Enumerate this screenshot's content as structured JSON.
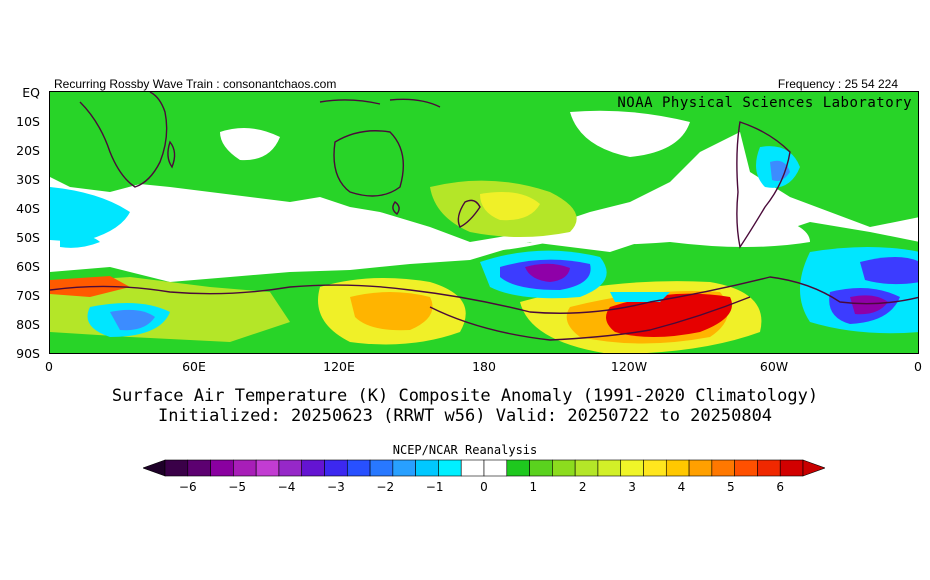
{
  "header": {
    "left": "Recurring Rossby Wave Train : consonantchaos.com",
    "right": "Frequency : 25 54 224"
  },
  "map": {
    "lab_label": "NOAA Physical Sciences Laboratory",
    "projection": "equirectangular, 0–360E, EQ–90S",
    "lat_labels": [
      "EQ",
      "10S",
      "20S",
      "30S",
      "40S",
      "50S",
      "60S",
      "70S",
      "80S",
      "90S"
    ],
    "lon_labels": [
      "0",
      "60E",
      "120E",
      "180",
      "120W",
      "60W",
      "0"
    ],
    "fill_palette": {
      "neg6": "#5a006a",
      "neg5": "#8f00a8",
      "neg4": "#c03ad8",
      "neg3": "#3c3cff",
      "neg2": "#3c8cff",
      "neg1": "#00e6ff",
      "neutral": "#ffffff",
      "pos1": "#28d428",
      "pos2": "#b4e628",
      "pos3": "#f0f028",
      "pos4": "#ffb400",
      "pos5": "#ff5a00",
      "pos6": "#e60000"
    },
    "coastline_color": "#4a0a3a"
  },
  "title": {
    "line1": "Surface Air Temperature (K) Composite Anomaly (1991-2020 Climatology)",
    "line2": "Initialized: 20250623 (RRWT w56) Valid: 20250722 to 20250804"
  },
  "colorbar": {
    "source": "NCEP/NCAR Reanalysis",
    "colors": [
      "#3a0048",
      "#5c0070",
      "#8a00a0",
      "#a81eb8",
      "#c23cd2",
      "#9628c8",
      "#6414d2",
      "#3c28f0",
      "#2850ff",
      "#2878ff",
      "#28a0ff",
      "#00c8ff",
      "#00f0ff",
      "#ffffff",
      "#ffffff",
      "#1ec81e",
      "#5ad21e",
      "#8cdc1e",
      "#b4e628",
      "#d2f028",
      "#f0f528",
      "#ffe61e",
      "#ffc800",
      "#ffa000",
      "#ff7800",
      "#ff5000",
      "#f02800",
      "#d20000"
    ],
    "tick_labels": [
      "-6",
      "-5",
      "-4",
      "-3",
      "-2",
      "-1",
      "0",
      "1",
      "2",
      "3",
      "4",
      "5",
      "6"
    ],
    "left_arrow": "#1e0028",
    "right_arrow": "#c80000"
  }
}
